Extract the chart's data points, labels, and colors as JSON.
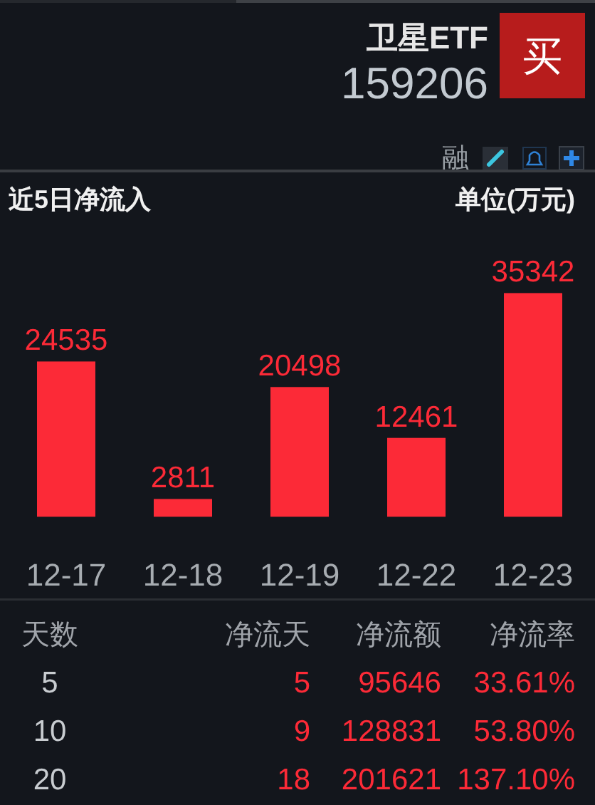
{
  "chart_data": [
    {
      "type": "other",
      "title": "卫星ETF",
      "subtitle": "159206",
      "annotations": [
        "买",
        "融"
      ]
    },
    {
      "type": "bar",
      "title": "近5日净流入",
      "annotations": [
        "单位(万元)"
      ],
      "categories": [
        "12-17",
        "12-18",
        "12-19",
        "12-22",
        "12-23"
      ],
      "values": [
        24535,
        2811,
        20498,
        12461,
        35342
      ],
      "color": "#fc2a37",
      "data_labels": true
    },
    {
      "type": "other",
      "annotations": [
        "天数",
        "净流天",
        "净流额",
        "净流率",
        "5",
        "5",
        "95646",
        "33.61%",
        "10",
        "9",
        "128831",
        "53.80%",
        "20",
        "18",
        "201621",
        "137.10%"
      ]
    }
  ]
}
